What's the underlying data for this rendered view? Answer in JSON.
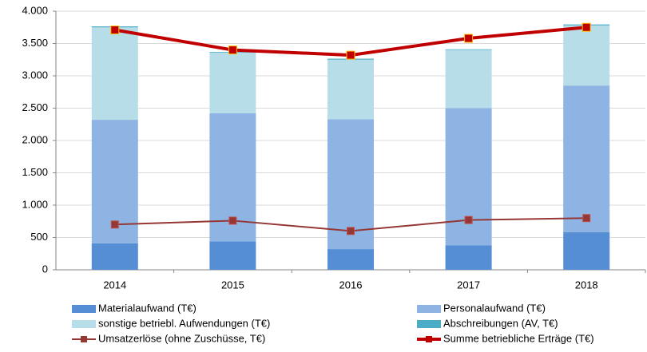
{
  "chart_data": {
    "type": "bar",
    "stacked": true,
    "categories": [
      "2014",
      "2015",
      "2016",
      "2017",
      "2018"
    ],
    "series": [
      {
        "name": "Materialaufwand (T€)",
        "type": "bar",
        "color": "#558ed5",
        "values": [
          410,
          440,
          320,
          380,
          580
        ]
      },
      {
        "name": "Personalaufwand (T€)",
        "type": "bar",
        "color": "#8eb4e3",
        "values": [
          1910,
          1980,
          2010,
          2120,
          2270
        ]
      },
      {
        "name": "sonstige betriebl. Aufwendungen (T€)",
        "type": "bar",
        "color": "#b7dee8",
        "values": [
          1430,
          940,
          920,
          900,
          930
        ]
      },
      {
        "name": "Abschreibungen (AV, T€)",
        "type": "bar",
        "color": "#4bacc6",
        "values": [
          15,
          10,
          15,
          10,
          15
        ]
      },
      {
        "name": "Umsatzerlöse (ohne Zuschüsse, T€)",
        "type": "line",
        "color": "#953735",
        "values": [
          700,
          760,
          600,
          770,
          800
        ]
      },
      {
        "name": "Summe betriebliche Erträge (T€)",
        "type": "line",
        "color": "#c00000",
        "values": [
          3710,
          3400,
          3320,
          3580,
          3750
        ]
      }
    ],
    "ylim": [
      0,
      4000
    ],
    "yticks": [
      0,
      500,
      {
        "value": 1000,
        "label": "1.000"
      },
      {
        "value": 1500,
        "label": "1.500"
      },
      {
        "value": 2000,
        "label": "2.000"
      },
      {
        "value": 2500,
        "label": "2.500"
      },
      {
        "value": 3000,
        "label": "3.000"
      },
      {
        "value": 3500,
        "label": "3.500"
      },
      {
        "value": 4000,
        "label": "4.000"
      }
    ],
    "grid": true,
    "legend": "bottom"
  }
}
